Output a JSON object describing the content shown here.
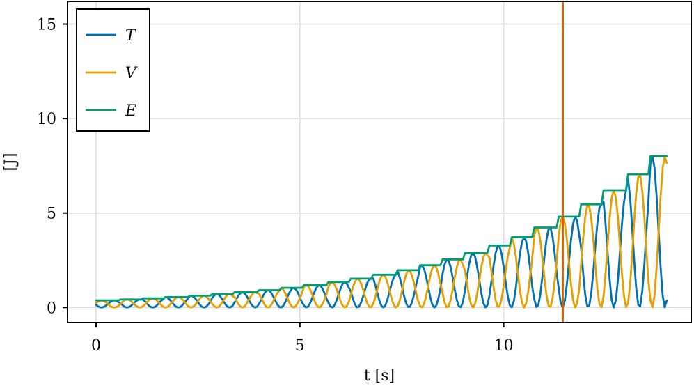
{
  "chart_data": {
    "type": "line",
    "title": "",
    "xlabel": "t [s]",
    "ylabel": "[J]",
    "xlim": [
      -0.7,
      14.6
    ],
    "ylim": [
      -0.8,
      16.2
    ],
    "xticks": [
      0,
      5,
      10
    ],
    "yticks": [
      0,
      5,
      10,
      15
    ],
    "grid": true,
    "legend": "top-left",
    "vline": {
      "x": 11.45,
      "color": "#d55e00"
    },
    "model": {
      "t_end": 14.0,
      "step": 0.05,
      "omega": 5.0,
      "kick_period": 0.5655,
      "envelope_a": 0.33,
      "envelope_b": 0.2256
    },
    "series": [
      {
        "name": "T",
        "color": "#0072b2"
      },
      {
        "name": "V",
        "color": "#e69f00"
      },
      {
        "name": "E",
        "color": "#009e73"
      }
    ]
  }
}
